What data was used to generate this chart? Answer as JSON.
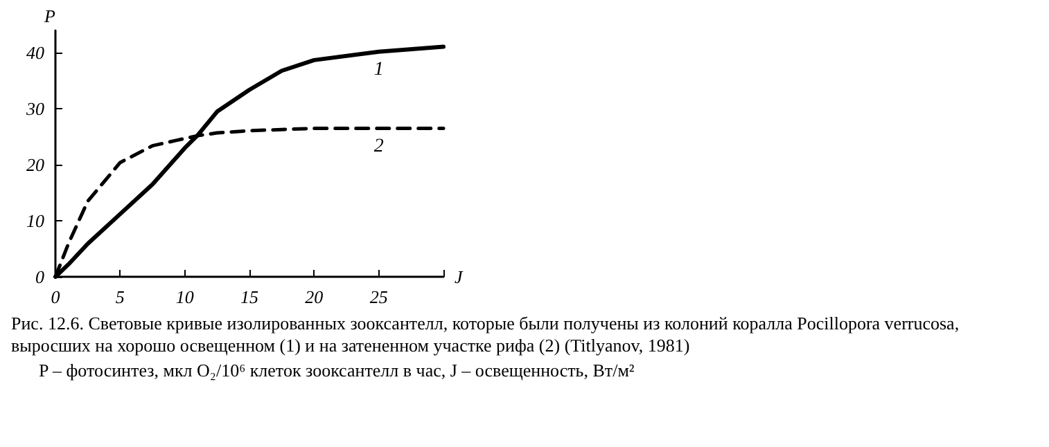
{
  "chart_data": {
    "type": "line",
    "xlabel": "J",
    "ylabel": "P",
    "x": [
      0,
      1,
      2.5,
      5,
      7.5,
      10,
      11,
      12.5,
      15,
      17.5,
      20,
      25,
      30
    ],
    "series": [
      {
        "name": "1",
        "color": "#000000",
        "line_style": "solid",
        "values": [
          0,
          2.2,
          5.9,
          11.2,
          16.5,
          23,
          25.3,
          29.5,
          33.4,
          36.8,
          38.7,
          40.2,
          41.1
        ]
      },
      {
        "name": "2",
        "color": "#000000",
        "line_style": "dashed",
        "values": [
          0,
          5.9,
          13.5,
          20.4,
          23.4,
          24.7,
          25.2,
          25.7,
          26.1,
          26.3,
          26.5,
          26.5,
          26.5
        ]
      }
    ],
    "xlim": [
      0,
      30
    ],
    "xticks": [
      0,
      5,
      10,
      15,
      20,
      25,
      {
        "value": 30,
        "label": null
      }
    ],
    "ylim": [
      0,
      44
    ],
    "yticks": [
      0,
      10,
      20,
      30,
      40
    ],
    "grid": false,
    "marker": "none",
    "annotations": [
      "Рис. 12.6. Световые кривые изолированных зооксантелл, которые были получены из колоний коралла Pocillopora verrucosa, выросших на хорошо освещенном (1) и на затененном участке рифа (2) (Titlyanov, 1981)",
      "P – фотосинтез, мкл O₂/10⁶ клеток зооксантелл в час, J – освещенность, Вт/м²"
    ]
  }
}
